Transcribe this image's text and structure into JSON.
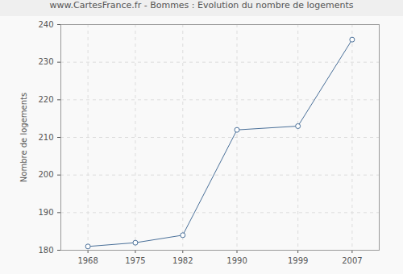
{
  "chart_data": {
    "type": "line",
    "title": "www.CartesFrance.fr - Bommes : Evolution du nombre de logements",
    "y_label": "Nombre de logements",
    "x": [
      1968,
      1975,
      1982,
      1990,
      1999,
      2007
    ],
    "values": [
      181,
      182,
      184,
      212,
      213,
      236
    ],
    "color": "#4a7099",
    "marker": "circle",
    "xlim": [
      1964,
      2011
    ],
    "xticks": [
      1968,
      1975,
      1982,
      1990,
      1999,
      2007
    ],
    "ylim": [
      180,
      240
    ],
    "yticks": [
      180,
      190,
      200,
      210,
      220,
      230,
      240
    ],
    "grid": true
  }
}
